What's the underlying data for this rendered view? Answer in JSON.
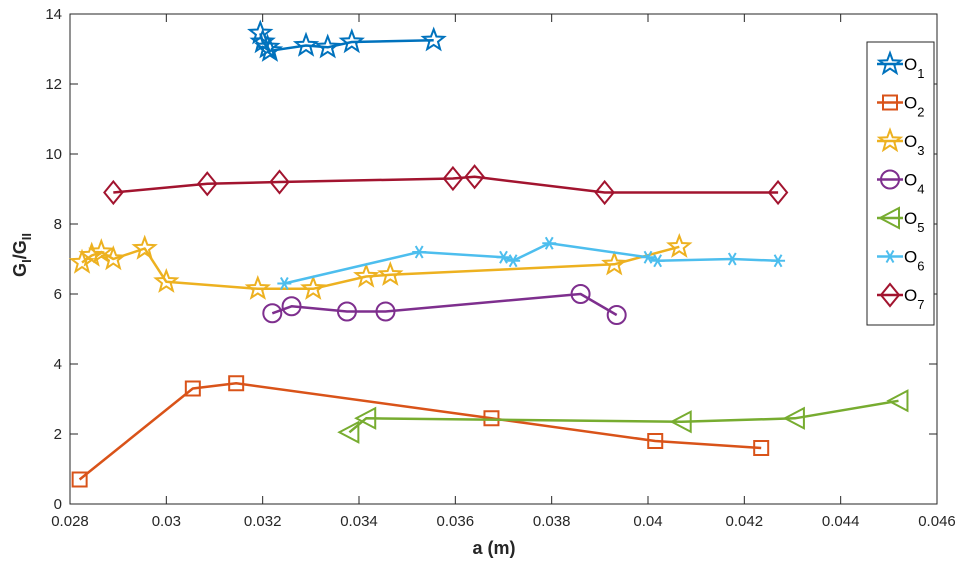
{
  "chart_data": {
    "type": "line",
    "xlabel": "a (m)",
    "ylabel": {
      "base1": "G",
      "sub1": "I",
      "slash": "/G",
      "sub2": "II"
    },
    "xlim": [
      0.028,
      0.046
    ],
    "ylim": [
      0,
      14
    ],
    "xticks": [
      0.028,
      0.03,
      0.032,
      0.034,
      0.036,
      0.038,
      0.04,
      0.042,
      0.044,
      0.046
    ],
    "xtick_labels": [
      "0.028",
      "0.03",
      "0.032",
      "0.034",
      "0.036",
      "0.038",
      "0.04",
      "0.042",
      "0.044",
      "0.046"
    ],
    "yticks": [
      0,
      2,
      4,
      6,
      8,
      10,
      12,
      14
    ],
    "ytick_labels": [
      "0",
      "2",
      "4",
      "6",
      "8",
      "10",
      "12",
      "14"
    ],
    "grid": false,
    "legend_position": "right",
    "series": [
      {
        "name": "O",
        "subscript": "1",
        "color": "#0072BD",
        "marker": "pentagram",
        "x": [
          0.03195,
          0.032,
          0.0321,
          0.03215,
          0.0329,
          0.03335,
          0.03385,
          0.03555
        ],
        "y": [
          13.45,
          13.2,
          13.05,
          12.95,
          13.1,
          13.05,
          13.2,
          13.25
        ]
      },
      {
        "name": "O",
        "subscript": "2",
        "color": "#D95319",
        "marker": "square",
        "x": [
          0.0282,
          0.03055,
          0.03145,
          0.03675,
          0.04015,
          0.04235
        ],
        "y": [
          0.7,
          3.3,
          3.45,
          2.45,
          1.8,
          1.6
        ]
      },
      {
        "name": "O",
        "subscript": "3",
        "color": "#EDB120",
        "marker": "pentagram",
        "x": [
          0.02825,
          0.02845,
          0.02865,
          0.0289,
          0.02955,
          0.03,
          0.0319,
          0.03305,
          0.03415,
          0.03465,
          0.0393,
          0.04065
        ],
        "y": [
          6.9,
          7.1,
          7.2,
          7.0,
          7.3,
          6.35,
          6.15,
          6.15,
          6.5,
          6.55,
          6.85,
          7.35
        ]
      },
      {
        "name": "O",
        "subscript": "4",
        "color": "#7E2F8E",
        "marker": "circle",
        "x": [
          0.0322,
          0.0326,
          0.03375,
          0.03455,
          0.0386,
          0.03935
        ],
        "y": [
          5.45,
          5.65,
          5.5,
          5.5,
          6.0,
          5.4
        ]
      },
      {
        "name": "O",
        "subscript": "5",
        "color": "#77AC30",
        "marker": "triangle-left",
        "x": [
          0.0338,
          0.03415,
          0.0407,
          0.04305,
          0.0452
        ],
        "y": [
          2.05,
          2.45,
          2.35,
          2.45,
          2.95
        ]
      },
      {
        "name": "O",
        "subscript": "6",
        "color": "#4DBEEE",
        "marker": "asterisk",
        "x": [
          0.03245,
          0.03525,
          0.037,
          0.0372,
          0.03795,
          0.04,
          0.0402,
          0.04175,
          0.0427
        ],
        "y": [
          6.3,
          7.2,
          7.05,
          6.95,
          7.45,
          7.05,
          6.95,
          7.0,
          6.95
        ]
      },
      {
        "name": "O",
        "subscript": "7",
        "color": "#A2142F",
        "marker": "diamond",
        "x": [
          0.0289,
          0.03085,
          0.03235,
          0.03595,
          0.0364,
          0.0391,
          0.0427
        ],
        "y": [
          8.9,
          9.15,
          9.2,
          9.3,
          9.35,
          8.9,
          8.9
        ]
      }
    ]
  }
}
